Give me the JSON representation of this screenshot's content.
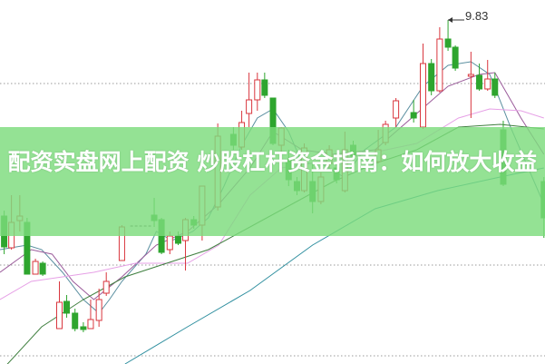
{
  "title": "配资实盘网上配资 炒股杠杆资金指南：如何放大收益",
  "peak_price_label": "9.83",
  "colors": {
    "up": "#d9363e",
    "down": "#2ea52e",
    "banner": "#7ddc7d",
    "text": "#ffffff"
  }
}
